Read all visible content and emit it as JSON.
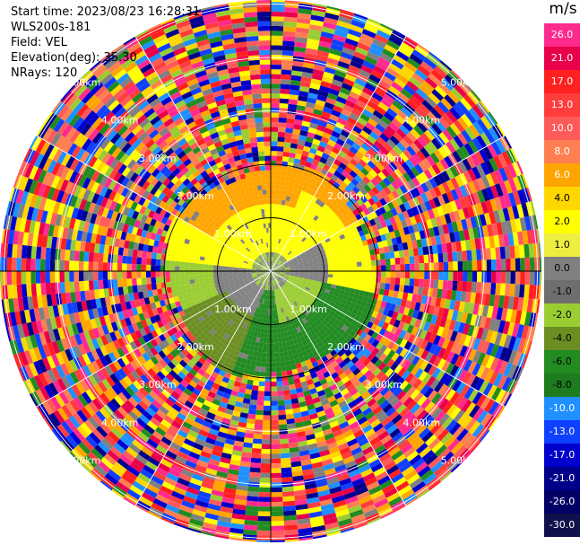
{
  "header": {
    "start_time": "Start time: 2023/08/23 16:28:31",
    "instrument": "WLS200s-181",
    "field": "Field: VEL",
    "elevation": "Elevation(deg): 35.30",
    "nrays": "NRays: 120"
  },
  "range_rings": {
    "labels": [
      "1.00km",
      "2.00km",
      "3.00km",
      "4.00km",
      "5.00km"
    ]
  },
  "colorbar": {
    "unit": "m/s",
    "ticks": [
      "26.0",
      "21.0",
      "17.0",
      "13.0",
      "10.0",
      "8.0",
      "6.0",
      "4.0",
      "2.0",
      "1.0",
      "0.0",
      "-1.0",
      "-2.0",
      "-4.0",
      "-6.0",
      "-8.0",
      "-10.0",
      "-13.0",
      "-17.0",
      "-21.0",
      "-26.0",
      "-30.0"
    ],
    "colors": [
      "#ff2a8d",
      "#e8004a",
      "#ff2020",
      "#ff3d3d",
      "#ff5a5a",
      "#ff7f50",
      "#ffa500",
      "#ffd700",
      "#ffff00",
      "#eeee40",
      "#808080",
      "#6e6e6e",
      "#9acd32",
      "#6b8e23",
      "#228b22",
      "#1e7b1e",
      "#1e90ff",
      "#1040ff",
      "#0000cd",
      "#00008b",
      "#000066",
      "#10104a"
    ]
  }
}
